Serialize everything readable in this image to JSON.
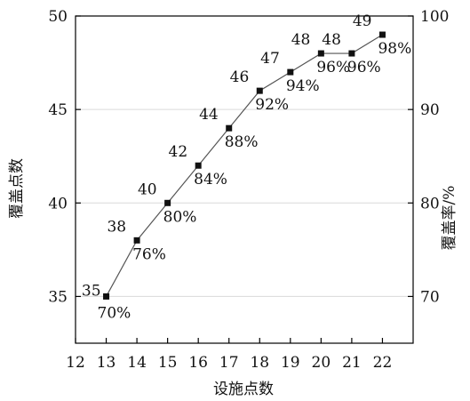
{
  "chart_data": {
    "type": "line",
    "x": [
      13,
      14,
      15,
      16,
      17,
      18,
      19,
      20,
      21,
      22
    ],
    "xlabel": "设施点数",
    "xlim": [
      12,
      23
    ],
    "xticks": [
      "12",
      "13",
      "14",
      "15",
      "16",
      "17",
      "18",
      "19",
      "20",
      "21",
      "22"
    ],
    "ylabel_left": "覆盖点数",
    "ylim_left": [
      32.5,
      50
    ],
    "yticks_left": [
      "35",
      "40",
      "45",
      "50"
    ],
    "ylabel_right": "覆盖率/%",
    "ylim_right": [
      65,
      100
    ],
    "yticks_right": [
      "70",
      "80",
      "90",
      "100"
    ],
    "grid": "horizontal",
    "series": [
      {
        "values": [
          35,
          38,
          40,
          42,
          44,
          46,
          47,
          48,
          48,
          49
        ],
        "top_labels": [
          "35",
          "38",
          "40",
          "42",
          "44",
          "46",
          "47",
          "48",
          "48",
          "49"
        ],
        "bottom_labels": [
          "70%",
          "76%",
          "80%",
          "84%",
          "88%",
          "92%",
          "94%",
          "96%",
          "96%",
          "98%"
        ]
      }
    ],
    "colors": {
      "line": "#555555",
      "marker": "#111111",
      "grid": "#d9d9d9",
      "axis": "#000000"
    }
  }
}
